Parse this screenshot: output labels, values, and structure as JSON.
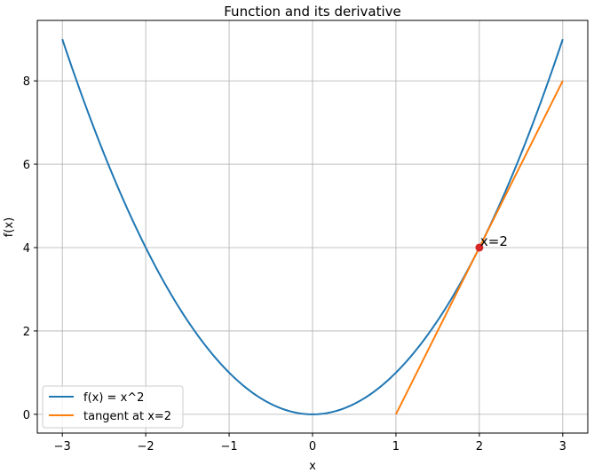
{
  "chart_data": {
    "type": "line",
    "title": "Function and its derivative",
    "xlabel": "x",
    "ylabel": "f(x)",
    "xlim": [
      -3.3,
      3.3
    ],
    "ylim": [
      -0.45,
      9.45
    ],
    "xticks": [
      -3,
      -2,
      -1,
      0,
      1,
      2,
      3
    ],
    "xtick_labels": [
      "−3",
      "−2",
      "−1",
      "0",
      "1",
      "2",
      "3"
    ],
    "yticks": [
      0,
      2,
      4,
      6,
      8
    ],
    "ytick_labels": [
      "0",
      "2",
      "4",
      "6",
      "8"
    ],
    "grid": true,
    "legend_position": "lower-left",
    "series": [
      {
        "name": "f(x) = x^2",
        "color": "#1f77b4",
        "function": "x^2",
        "x_range": [
          -3,
          3
        ]
      },
      {
        "name": "tangent at x=2",
        "color": "#ff7f0e",
        "x": [
          1,
          3
        ],
        "y": [
          0,
          8
        ]
      }
    ],
    "points": [
      {
        "x": 2,
        "y": 4,
        "color": "#d62728",
        "label": "x=2"
      }
    ]
  }
}
